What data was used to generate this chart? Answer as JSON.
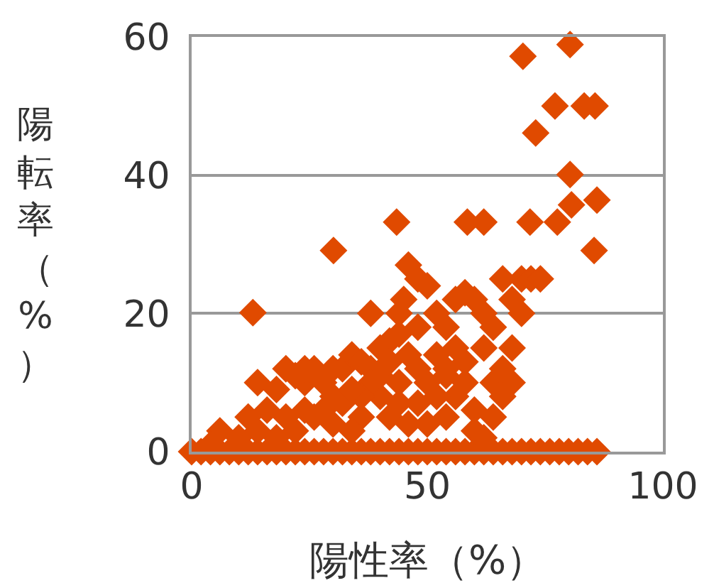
{
  "chart_data": {
    "type": "scatter",
    "xlabel": "陽性率（%）",
    "ylabel": "陽転率（%）",
    "xlim": [
      0,
      100
    ],
    "ylim": [
      0,
      60
    ],
    "xticks": [
      0,
      50,
      100
    ],
    "yticks": [
      0,
      20,
      40,
      60
    ],
    "grid": "y",
    "marker": "diamond",
    "series": [
      {
        "color": "#e04a00",
        "x": [
          70.3,
          80.3,
          77.1,
          83.3,
          85.6,
          73,
          80.3,
          80.6,
          86,
          58.5,
          62,
          71.8,
          77.6,
          85.4,
          30.1,
          43.5,
          13,
          0,
          2,
          4,
          6,
          8,
          10,
          12,
          14,
          16,
          18,
          20,
          22,
          24,
          26,
          28,
          30,
          32,
          34,
          36,
          38,
          40,
          42,
          44,
          46,
          48,
          50,
          52,
          54,
          56,
          58,
          60,
          62,
          64,
          66,
          68,
          70,
          72,
          74,
          76,
          78,
          80,
          82,
          84,
          86,
          14,
          18,
          20,
          22,
          24,
          26,
          28,
          30,
          32,
          34,
          36,
          38,
          40,
          42,
          44,
          45,
          46,
          48,
          50,
          44,
          46,
          48,
          50,
          52,
          54,
          56,
          58,
          60,
          62,
          64,
          66,
          68,
          70,
          72,
          74,
          62,
          64,
          66,
          68,
          54,
          56,
          58,
          60,
          48,
          50,
          40,
          42,
          36,
          34,
          30,
          26,
          22,
          18,
          14,
          10,
          6,
          4,
          38,
          44,
          52,
          56,
          46,
          60,
          64,
          66,
          58,
          40,
          36,
          30,
          24,
          20,
          16,
          12,
          68,
          70,
          62,
          52,
          54,
          42,
          48,
          38,
          24,
          28,
          32,
          34,
          44,
          54
        ],
        "values": [
          57.2,
          58.9,
          50,
          50,
          50,
          46.1,
          40.1,
          35.7,
          36.4,
          33.2,
          33.2,
          33.2,
          33.2,
          29.1,
          29.1,
          33.2,
          20.1,
          0,
          0,
          0,
          0,
          0,
          0,
          0,
          0,
          0,
          0,
          0,
          0,
          0,
          0,
          0,
          0,
          0,
          0,
          0,
          0,
          0,
          0,
          0,
          0,
          0,
          0,
          0,
          0,
          0,
          0,
          0,
          0,
          0,
          0,
          0,
          0,
          0,
          0,
          0,
          0,
          0,
          0,
          0,
          0,
          10,
          9,
          12,
          11,
          10,
          12,
          10,
          8,
          12,
          14,
          13,
          12,
          15,
          16,
          20,
          22,
          27,
          25,
          24,
          17,
          14,
          12,
          10,
          20,
          18,
          15,
          23,
          22,
          20,
          18,
          25,
          22,
          25,
          25,
          25,
          15,
          10,
          8,
          10,
          11,
          8,
          10,
          6,
          7,
          4,
          8,
          5,
          5,
          3,
          4,
          5,
          3,
          2,
          3,
          2,
          3,
          1,
          10,
          10,
          14,
          22,
          4,
          3,
          5,
          12,
          13,
          11,
          8,
          12,
          6,
          5,
          6,
          5,
          15,
          20,
          2,
          8,
          5,
          13,
          18,
          20,
          12,
          6,
          7,
          9,
          7,
          12
        ]
      }
    ]
  }
}
